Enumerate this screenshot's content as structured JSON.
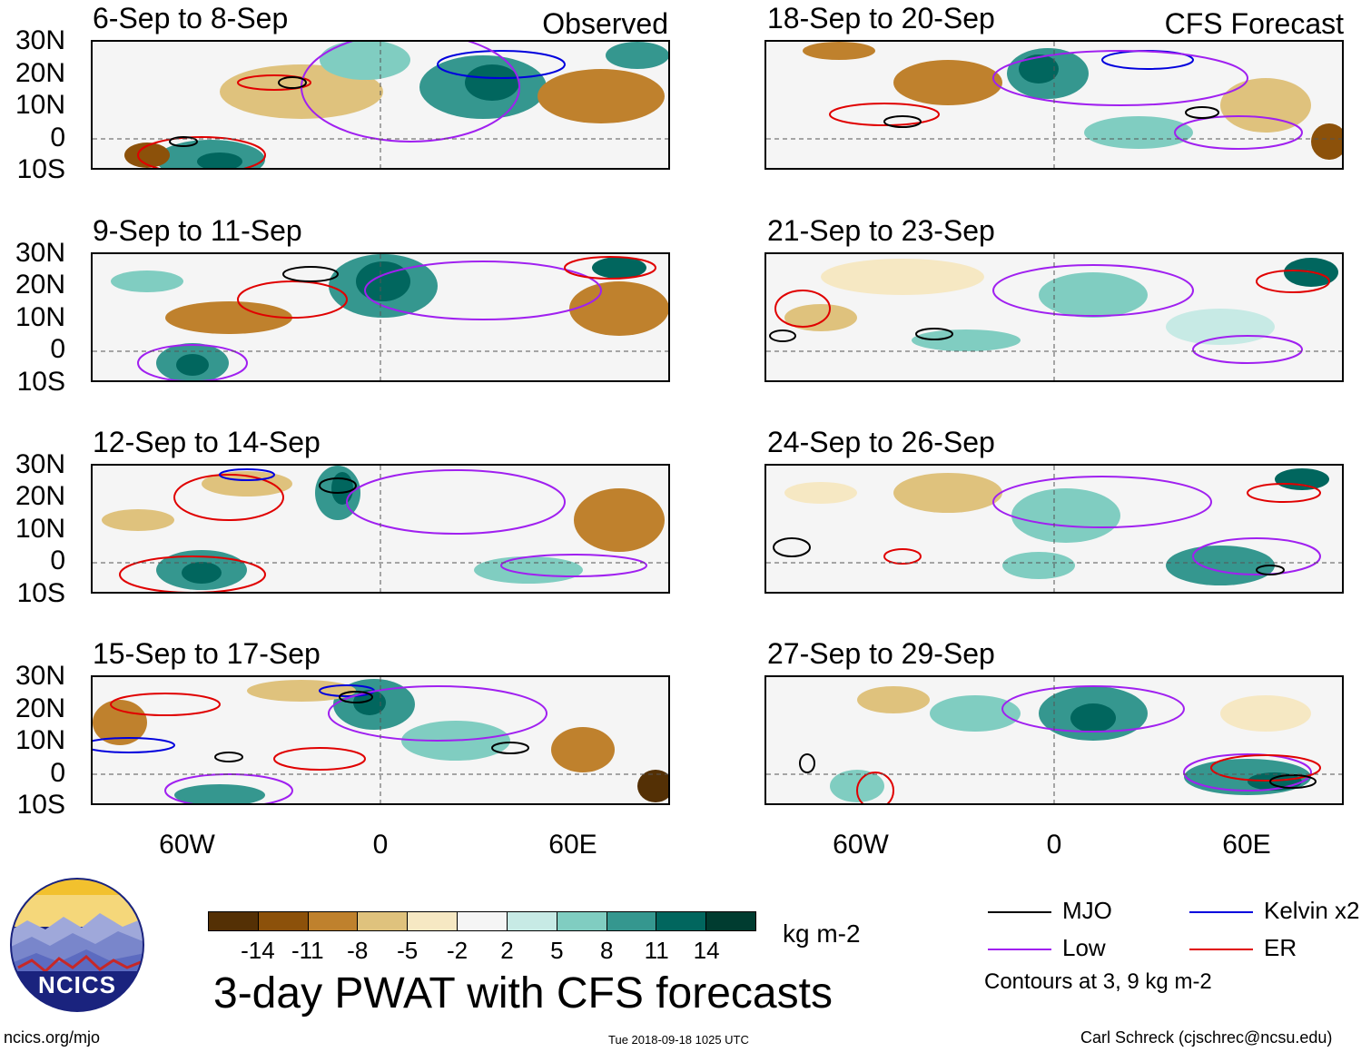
{
  "header": {
    "observed_tag": "Observed",
    "forecast_tag": "CFS Forecast"
  },
  "left_panels": [
    {
      "title": "6-Sep to 8-Sep"
    },
    {
      "title": "9-Sep to 11-Sep"
    },
    {
      "title": "12-Sep to 14-Sep"
    },
    {
      "title": "15-Sep to 17-Sep"
    }
  ],
  "right_panels": [
    {
      "title": "18-Sep to 20-Sep"
    },
    {
      "title": "21-Sep to 23-Sep"
    },
    {
      "title": "24-Sep to 26-Sep"
    },
    {
      "title": "27-Sep to 29-Sep"
    }
  ],
  "axes": {
    "lat_labels": [
      "30N",
      "20N",
      "10N",
      "0",
      "10S"
    ],
    "lon_labels": [
      "60W",
      "0",
      "60E"
    ]
  },
  "colorbar": {
    "colors": [
      "#543005",
      "#8c510a",
      "#bf812d",
      "#dfc27d",
      "#f6e8c3",
      "#f5f5f5",
      "#c7eae5",
      "#80cdc1",
      "#35978f",
      "#01665e",
      "#003c30"
    ],
    "labels": [
      "-14",
      "-11",
      "-8",
      "-5",
      "-2",
      "2",
      "5",
      "8",
      "11",
      "14"
    ],
    "units": "kg m-2"
  },
  "legend": {
    "items": [
      {
        "label": "MJO",
        "color": "#000000"
      },
      {
        "label": "Kelvin x2",
        "color": "#0000dd"
      },
      {
        "label": "Low",
        "color": "#a020f0"
      },
      {
        "label": "ER",
        "color": "#e00000"
      }
    ],
    "note": "Contours at 3, 9 kg m-2"
  },
  "logo": {
    "text": "NCICS"
  },
  "main_title": "3-day PWAT with CFS forecasts",
  "footer": {
    "url": "ncics.org/mjo",
    "timestamp": "Tue 2018-09-18 1025 UTC",
    "credit": "Carl Schreck (cjschrec@ncsu.edu)"
  }
}
